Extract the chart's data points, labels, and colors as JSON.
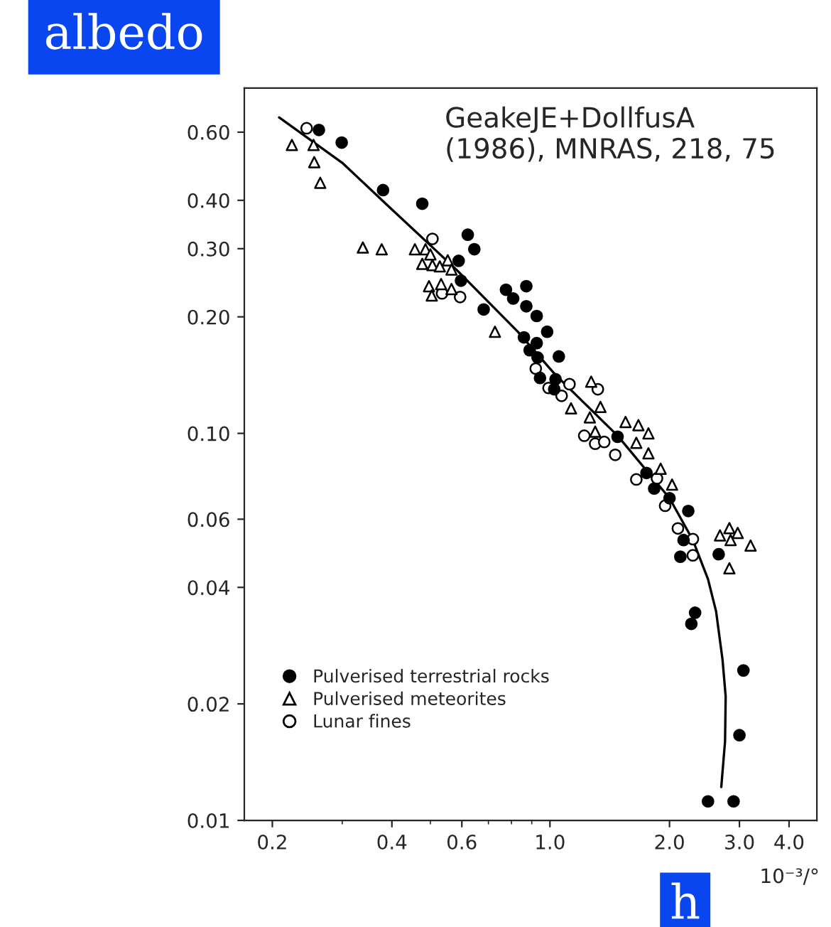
{
  "chart_data": {
    "type": "scatter",
    "xlabel": "h",
    "ylabel": "albedo",
    "annotations": [
      "GeakeJE+DollfusA\n(1986), MNRAS, 218, 75",
      "10⁻³/°"
    ],
    "log": "xy",
    "grid": false,
    "legend": "bottom left",
    "xlim": [
      0.17,
      4.7
    ],
    "ylim": [
      0.01,
      0.78
    ],
    "xticks": [
      0.2,
      0.4,
      0.6,
      {
        "value": 1.0,
        "label": "1.0"
      },
      {
        "value": 2.0,
        "label": "2.0"
      },
      {
        "value": 3.0,
        "label": "3.0"
      },
      {
        "value": 4.0,
        "label": "4.0"
      }
    ],
    "yticks": [
      0.01,
      0.02,
      0.04,
      0.06,
      {
        "value": 0.1,
        "label": "0.10"
      },
      {
        "value": 0.2,
        "label": "0.20"
      },
      {
        "value": 0.3,
        "label": "0.30"
      },
      {
        "value": 0.4,
        "label": "0.40"
      },
      {
        "value": 0.6,
        "label": "0.60"
      }
    ],
    "series": [
      {
        "name": "Pulverised terrestrial rocks",
        "color": "#000000",
        "marker": "circle",
        "x": [
          0.262,
          0.299,
          0.38,
          0.477,
          0.621,
          0.645,
          0.589,
          0.597,
          0.681,
          0.775,
          0.808,
          0.872,
          0.872,
          0.926,
          0.86,
          0.926,
          0.889,
          0.931,
          0.984,
          1.053,
          0.944,
          1.033,
          1.025,
          1.48,
          1.75,
          1.83,
          2.0,
          2.23,
          2.17,
          2.13,
          2.66,
          2.32,
          2.27,
          3.07,
          3.0,
          2.5,
          2.9
        ],
        "values": [
          0.608,
          0.564,
          0.425,
          0.392,
          0.326,
          0.299,
          0.279,
          0.248,
          0.209,
          0.235,
          0.223,
          0.24,
          0.213,
          0.201,
          0.177,
          0.171,
          0.164,
          0.157,
          0.183,
          0.158,
          0.139,
          0.138,
          0.13,
          0.098,
          0.079,
          0.072,
          0.068,
          0.063,
          0.053,
          0.048,
          0.0487,
          0.0344,
          0.0322,
          0.0244,
          0.0166,
          0.0112,
          0.0112
        ]
      },
      {
        "name": "Pulverised meteorites",
        "color": "#ffffff",
        "marker": "triangle",
        "x": [
          0.224,
          0.254,
          0.255,
          0.264,
          0.338,
          0.377,
          0.457,
          0.486,
          0.5,
          0.477,
          0.506,
          0.528,
          0.553,
          0.565,
          0.496,
          0.532,
          0.565,
          0.504,
          0.727,
          1.27,
          1.34,
          1.13,
          1.26,
          1.55,
          1.67,
          1.77,
          1.3,
          1.65,
          1.77,
          1.9,
          2.03,
          2.68,
          2.83,
          2.97,
          2.85,
          3.2,
          2.83
        ],
        "values": [
          0.556,
          0.556,
          0.502,
          0.444,
          0.302,
          0.299,
          0.299,
          0.299,
          0.29,
          0.274,
          0.272,
          0.27,
          0.28,
          0.265,
          0.24,
          0.243,
          0.236,
          0.227,
          0.183,
          0.136,
          0.117,
          0.116,
          0.11,
          0.107,
          0.105,
          0.1,
          0.101,
          0.0945,
          0.0888,
          0.081,
          0.0737,
          0.0545,
          0.0569,
          0.0553,
          0.053,
          0.0513,
          0.0448
        ]
      },
      {
        "name": "Lunar fines",
        "color": "#ffffff",
        "marker": "circle",
        "x": [
          0.244,
          0.506,
          0.535,
          0.594,
          0.921,
          0.992,
          1.12,
          1.07,
          1.32,
          1.22,
          1.3,
          1.37,
          1.46,
          1.65,
          1.86,
          1.95,
          2.1,
          2.29,
          2.29
        ],
        "values": [
          0.614,
          0.318,
          0.23,
          0.225,
          0.147,
          0.131,
          0.134,
          0.125,
          0.13,
          0.0986,
          0.094,
          0.095,
          0.088,
          0.076,
          0.0765,
          0.065,
          0.0568,
          0.0533,
          0.0484
        ]
      },
      {
        "type": "line",
        "color": "#000000",
        "x": [
          0.208,
          0.3,
          0.385,
          0.581,
          0.83,
          1.03,
          1.48,
          2.0,
          2.29,
          2.5,
          2.62,
          2.72,
          2.77,
          2.76,
          2.7
        ],
        "values": [
          0.655,
          0.5,
          0.393,
          0.265,
          0.183,
          0.142,
          0.0986,
          0.068,
          0.053,
          0.042,
          0.0347,
          0.026,
          0.0209,
          0.016,
          0.0122
        ]
      }
    ]
  }
}
